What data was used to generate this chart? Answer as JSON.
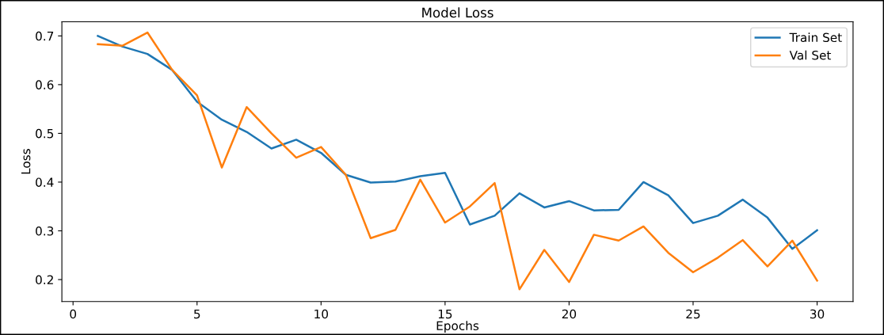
{
  "chart_data": {
    "type": "line",
    "title": "Model Loss",
    "xlabel": "Epochs",
    "ylabel": "Loss",
    "x": [
      1,
      2,
      3,
      4,
      5,
      6,
      7,
      8,
      9,
      10,
      11,
      12,
      13,
      14,
      15,
      16,
      17,
      18,
      19,
      20,
      21,
      22,
      23,
      24,
      25,
      26,
      27,
      28,
      29,
      30
    ],
    "series": [
      {
        "name": "Train Set",
        "color": "#1f77b4",
        "values": [
          0.7,
          0.678,
          0.663,
          0.63,
          0.565,
          0.528,
          0.503,
          0.469,
          0.487,
          0.46,
          0.415,
          0.399,
          0.401,
          0.412,
          0.419,
          0.313,
          0.331,
          0.377,
          0.348,
          0.361,
          0.342,
          0.343,
          0.4,
          0.373,
          0.316,
          0.331,
          0.364,
          0.327,
          0.263,
          0.301
        ]
      },
      {
        "name": "Val Set",
        "color": "#ff7f0e",
        "values": [
          0.683,
          0.68,
          0.707,
          0.63,
          0.578,
          0.43,
          0.554,
          0.5,
          0.45,
          0.472,
          0.415,
          0.285,
          0.302,
          0.405,
          0.317,
          0.35,
          0.398,
          0.18,
          0.261,
          0.195,
          0.292,
          0.28,
          0.309,
          0.255,
          0.215,
          0.245,
          0.281,
          0.227,
          0.28,
          0.198
        ]
      }
    ],
    "xlim": [
      -0.45,
      31.45
    ],
    "ylim": [
      0.155,
      0.729
    ],
    "xticks": [
      0,
      5,
      10,
      15,
      20,
      25,
      30
    ],
    "yticks": [
      0.2,
      0.3,
      0.4,
      0.5,
      0.6,
      0.7
    ],
    "grid": false,
    "legend": "top right",
    "marker": "none",
    "line_style": "solid"
  }
}
